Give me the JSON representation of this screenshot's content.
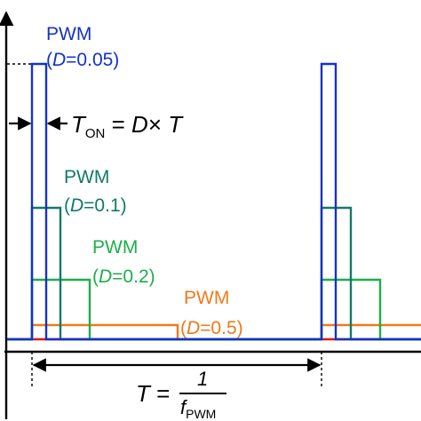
{
  "colors": {
    "axis": "#000000",
    "pwm_005": "#1432c8",
    "pwm_01": "#127a6a",
    "pwm_02": "#1fae4a",
    "pwm_05": "#f07a1a",
    "dc_level": "#e0151b"
  },
  "labels": {
    "pwm_005": {
      "name": "PWM",
      "open": "(",
      "d": "D",
      "eq": "=0.05)"
    },
    "pwm_01": {
      "name": "PWM",
      "open": "(",
      "d": "D",
      "eq": "=0.1)"
    },
    "pwm_02": {
      "name": "PWM",
      "open": "(",
      "d": "D",
      "eq": "=0.2)"
    },
    "pwm_05": {
      "name": "PWM",
      "open": "(",
      "d": "D",
      "eq": "=0.5)"
    }
  },
  "ton_formula": {
    "t": "T",
    "sub": "ON",
    "rest": " = ",
    "d": "D",
    "times": "× ",
    "t2": "T"
  },
  "period_formula": {
    "t": "T",
    "eq": " =",
    "num": "1",
    "f": "f",
    "sub": "PWM"
  }
}
